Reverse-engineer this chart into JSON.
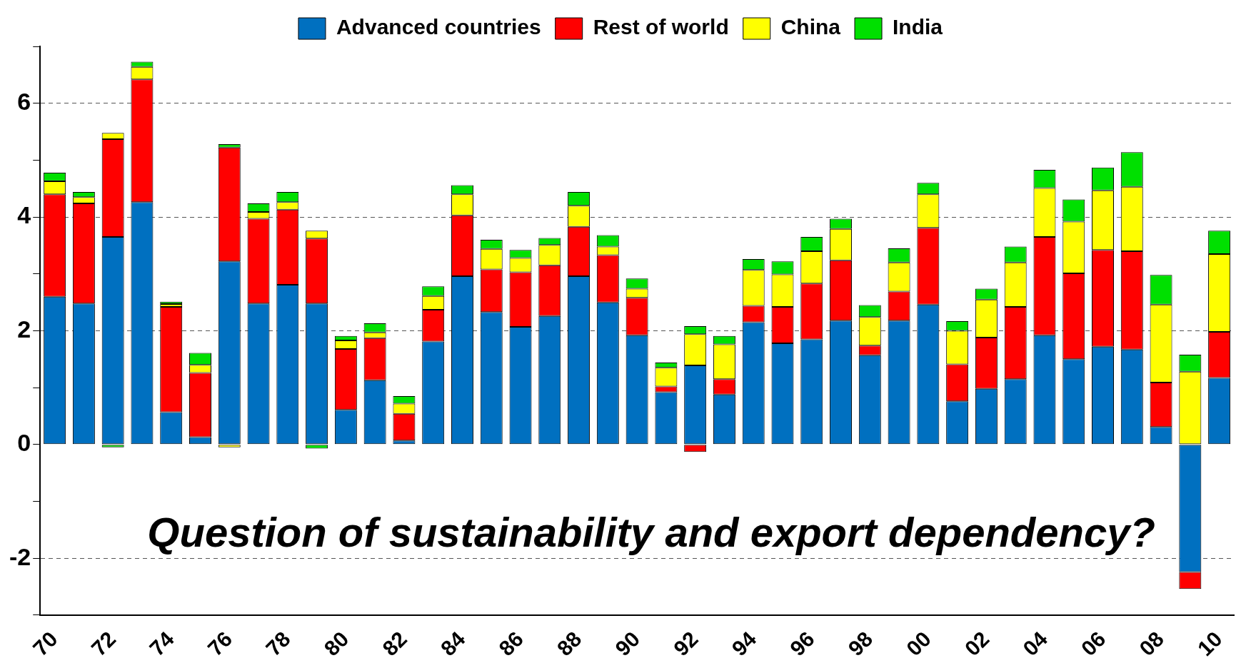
{
  "chart_data": {
    "type": "bar",
    "stacked": true,
    "categories": [
      "70",
      null,
      "72",
      null,
      "74",
      null,
      "76",
      null,
      "78",
      null,
      "80",
      null,
      "82",
      null,
      "84",
      null,
      "86",
      null,
      "88",
      null,
      "90",
      null,
      "92",
      null,
      "94",
      null,
      "96",
      null,
      "98",
      null,
      "00",
      null,
      "02",
      null,
      "04",
      null,
      "06",
      null,
      "08",
      null,
      "10"
    ],
    "series": [
      {
        "name": "Advanced countries",
        "color": "#0070c0",
        "values": [
          2.6,
          2.48,
          3.65,
          4.26,
          0.57,
          0.13,
          3.22,
          2.48,
          2.81,
          2.48,
          0.61,
          1.13,
          0.07,
          1.81,
          2.96,
          2.33,
          2.07,
          2.26,
          2.96,
          2.5,
          1.92,
          0.92,
          1.39,
          0.88,
          2.15,
          1.78,
          1.85,
          2.18,
          1.57,
          2.18,
          2.46,
          0.76,
          0.98,
          1.15,
          1.92,
          1.5,
          1.72,
          1.67,
          0.31,
          -2.24,
          1.17
        ]
      },
      {
        "name": "Rest of world",
        "color": "#ff0000",
        "values": [
          1.8,
          1.76,
          1.72,
          2.16,
          1.85,
          1.13,
          2.0,
          1.49,
          1.32,
          1.14,
          1.07,
          0.74,
          0.47,
          0.56,
          1.07,
          0.75,
          0.96,
          0.89,
          0.87,
          0.83,
          0.66,
          0.1,
          -0.13,
          0.27,
          0.29,
          0.64,
          0.98,
          1.06,
          0.17,
          0.51,
          1.35,
          0.65,
          0.9,
          1.27,
          1.73,
          1.51,
          1.7,
          1.73,
          0.78,
          -0.3,
          0.81
        ]
      },
      {
        "name": "China",
        "color": "#ffff00",
        "values": [
          0.23,
          0.11,
          0.11,
          0.22,
          0.05,
          0.14,
          -0.05,
          0.12,
          0.13,
          0.14,
          0.15,
          0.1,
          0.18,
          0.24,
          0.37,
          0.36,
          0.25,
          0.36,
          0.37,
          0.15,
          0.16,
          0.33,
          0.55,
          0.61,
          0.63,
          0.57,
          0.57,
          0.55,
          0.5,
          0.51,
          0.59,
          0.59,
          0.67,
          0.78,
          0.86,
          0.91,
          1.05,
          1.13,
          1.37,
          1.28,
          1.37
        ]
      },
      {
        "name": "India",
        "color": "#00e000",
        "values": [
          0.15,
          0.09,
          -0.05,
          0.09,
          0.04,
          0.21,
          0.06,
          0.15,
          0.18,
          -0.07,
          0.08,
          0.16,
          0.13,
          0.17,
          0.16,
          0.16,
          0.14,
          0.12,
          0.24,
          0.2,
          0.18,
          0.09,
          0.14,
          0.15,
          0.19,
          0.23,
          0.25,
          0.18,
          0.21,
          0.25,
          0.2,
          0.17,
          0.19,
          0.28,
          0.32,
          0.39,
          0.4,
          0.61,
          0.52,
          0.3,
          0.41
        ]
      }
    ],
    "ylim": [
      -3,
      7
    ],
    "yticks": [
      {
        "value": -3,
        "label": null
      },
      -2,
      {
        "value": -1,
        "label": null
      },
      0,
      {
        "value": 1,
        "label": null
      },
      2,
      {
        "value": 3,
        "label": null
      },
      4,
      {
        "value": 5,
        "label": null
      },
      6,
      {
        "value": 7,
        "label": null
      }
    ],
    "grid": "y",
    "legend": "top",
    "annotations": [
      "Question of sustainability and export dependency?"
    ]
  }
}
